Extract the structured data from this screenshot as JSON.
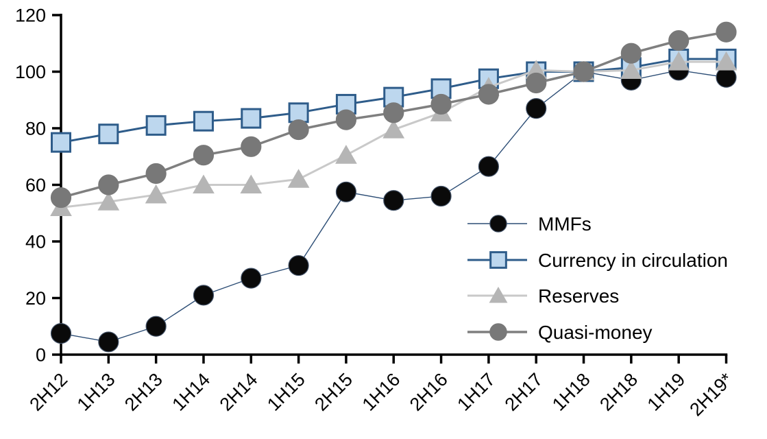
{
  "chart_data": {
    "type": "line",
    "title": "",
    "categories": [
      "2H12",
      "1H13",
      "2H13",
      "1H14",
      "2H14",
      "1H15",
      "2H15",
      "1H16",
      "2H16",
      "1H17",
      "2H17",
      "1H18",
      "2H18",
      "1H19",
      "2H19*"
    ],
    "series": [
      {
        "name": "MMFs",
        "marker": "circle",
        "marker_size": 29,
        "line_color": "#2c4d75",
        "line_width": 1.4,
        "marker_fill": "#0a0a0a",
        "marker_stroke": "#44546a",
        "values": [
          7.5,
          4.5,
          10,
          21,
          27,
          31.5,
          57.5,
          54.5,
          56,
          66.5,
          87,
          100,
          97,
          100.5,
          98
        ]
      },
      {
        "name": "Currency in circulation",
        "marker": "square",
        "marker_size": 27,
        "line_color": "#2e5c8a",
        "line_width": 3,
        "marker_fill": "#bdd7ee",
        "marker_stroke": "#2e5c8a",
        "values": [
          75,
          78,
          81,
          82.5,
          83.5,
          85.5,
          88.5,
          91,
          94,
          97.5,
          100,
          100,
          101.5,
          104.5,
          104.5
        ]
      },
      {
        "name": "Reserves",
        "marker": "triangle",
        "marker_size": 30,
        "line_color": "#c9c9c9",
        "line_width": 3,
        "marker_fill": "#b5b5b5",
        "marker_stroke": "#b5b5b5",
        "values": [
          52,
          54,
          56.5,
          60,
          60,
          62,
          70.5,
          79.5,
          85.5,
          94.5,
          100.5,
          100,
          100.5,
          103.5,
          103.5
        ]
      },
      {
        "name": "Quasi-money",
        "marker": "circle",
        "marker_size": 29,
        "line_color": "#7f7f7f",
        "line_width": 3.5,
        "marker_fill": "#787878",
        "marker_stroke": "#787878",
        "values": [
          55.5,
          60,
          64,
          70.5,
          73.5,
          79.5,
          83,
          85.5,
          88.5,
          92,
          96,
          100,
          106.5,
          111,
          114
        ]
      }
    ],
    "y_axis": {
      "min": 0,
      "max": 120,
      "step": 20,
      "tick_labels": [
        "0",
        "20",
        "40",
        "60",
        "80",
        "100",
        "120"
      ]
    },
    "x_axis": {
      "rotation": -45
    },
    "legend": {
      "position": "inside-right",
      "entries": [
        "MMFs",
        "Currency in circulation",
        "Reserves",
        "Quasi-money"
      ]
    },
    "grid": false,
    "axis_color": "#000000",
    "background": "#ffffff"
  }
}
